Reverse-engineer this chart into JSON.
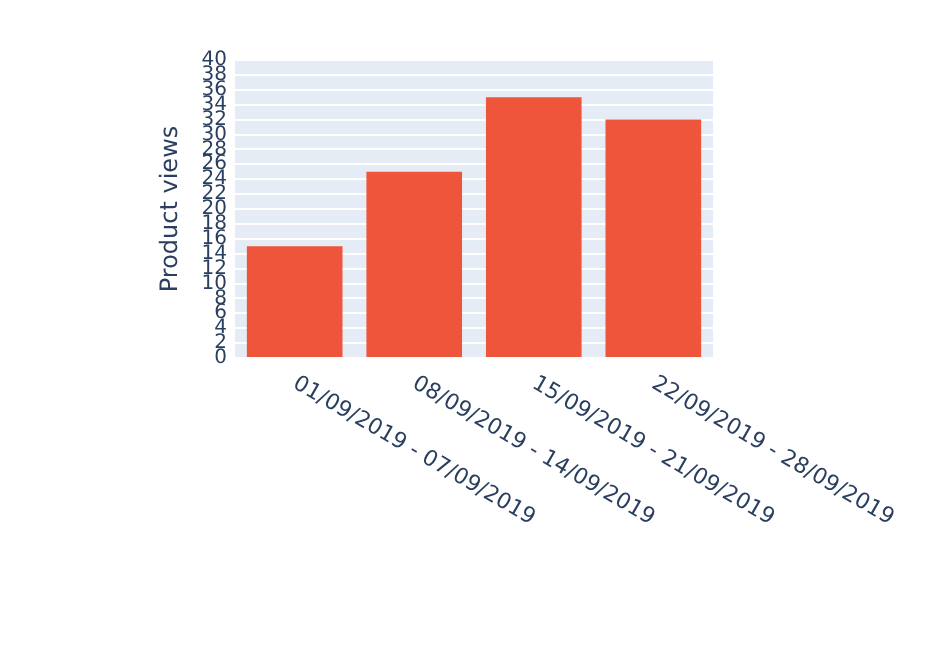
{
  "chart_data": {
    "type": "bar",
    "ylabel": "Product views",
    "categories": [
      "01/09/2019 - 07/09/2019",
      "08/09/2019 - 14/09/2019",
      "15/09/2019 - 21/09/2019",
      "22/09/2019 - 28/09/2019"
    ],
    "values": [
      15,
      25,
      35,
      32
    ],
    "color": "#ef553b",
    "ylim": [
      0,
      40
    ],
    "yticks": [
      0,
      2,
      4,
      6,
      8,
      10,
      12,
      14,
      16,
      18,
      20,
      22,
      24,
      26,
      28,
      30,
      32,
      34,
      36,
      38,
      40
    ],
    "grid": "y",
    "legend": false
  }
}
